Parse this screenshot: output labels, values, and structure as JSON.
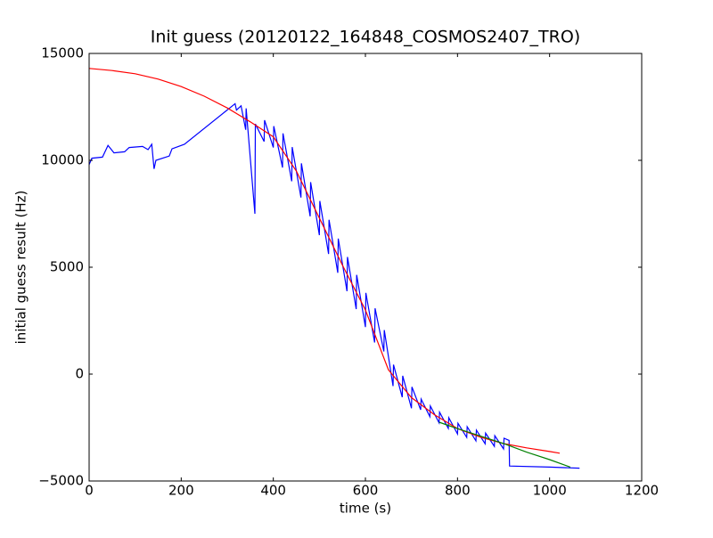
{
  "chart_data": {
    "type": "line",
    "title": "Init guess (20120122_164848_COSMOS2407_TRO)",
    "x_label": "time (s)",
    "y_label": "initial guess result (Hz)",
    "xlim": [
      0,
      1200
    ],
    "xticks": [
      0,
      200,
      400,
      600,
      800,
      1000,
      1200
    ],
    "ylim": [
      -5000,
      15000
    ],
    "yticks": [
      {
        "value": -5000,
        "label": "−5000"
      },
      0,
      5000,
      10000,
      15000
    ],
    "grid": false,
    "series": [
      {
        "color": "#0000ff",
        "x": [
          0,
          6,
          29,
          41,
          54,
          77,
          87,
          116,
          128,
          136,
          141,
          145,
          174,
          180,
          207,
          317,
          320,
          330,
          340,
          341,
          360,
          361,
          380,
          381,
          400,
          401,
          420,
          421,
          440,
          441,
          460,
          461,
          480,
          481,
          500,
          501,
          520,
          521,
          540,
          541,
          560,
          561,
          580,
          581,
          600,
          601,
          620,
          621,
          640,
          641,
          660,
          661,
          680,
          681,
          700,
          701,
          720,
          721,
          740,
          741,
          760,
          761,
          780,
          781,
          800,
          801,
          820,
          821,
          840,
          841,
          860,
          861,
          880,
          881,
          900,
          901,
          912,
          913,
          1000,
          1065
        ],
        "values": [
          9800,
          10100,
          10150,
          10700,
          10350,
          10400,
          10600,
          10650,
          10500,
          10750,
          9600,
          10000,
          10200,
          10540,
          10750,
          12650,
          12350,
          12550,
          11430,
          12430,
          7500,
          11700,
          10880,
          11880,
          10600,
          11600,
          9660,
          11260,
          9020,
          10620,
          8260,
          9860,
          7380,
          8980,
          6500,
          8100,
          5620,
          7220,
          4740,
          6340,
          3880,
          5480,
          3040,
          4640,
          2200,
          3800,
          1480,
          3080,
          1060,
          2060,
          -560,
          440,
          -1080,
          -80,
          -1600,
          -600,
          -1670,
          -1170,
          -1990,
          -1490,
          -2280,
          -1780,
          -2540,
          -2040,
          -2800,
          -2300,
          -2960,
          -2460,
          -3120,
          -2620,
          -3260,
          -2760,
          -3380,
          -2880,
          -3500,
          -3000,
          -3100,
          -4300,
          -4350,
          -4400
        ]
      },
      {
        "color": "#ff0000",
        "x": [
          0,
          50,
          100,
          150,
          200,
          250,
          300,
          350,
          400,
          450,
          500,
          550,
          600,
          650,
          700,
          750,
          800,
          850,
          900,
          950,
          1000,
          1022
        ],
        "values": [
          14300,
          14200,
          14050,
          13800,
          13450,
          13000,
          12450,
          11800,
          11100,
          9500,
          7300,
          5100,
          3000,
          200,
          -1100,
          -1900,
          -2550,
          -2950,
          -3250,
          -3450,
          -3620,
          -3700
        ]
      },
      {
        "color": "#008000",
        "x": [
          760,
          800,
          850,
          900,
          950,
          1000,
          1045
        ],
        "values": [
          -2250,
          -2550,
          -2900,
          -3250,
          -3650,
          -4000,
          -4350
        ]
      }
    ]
  }
}
